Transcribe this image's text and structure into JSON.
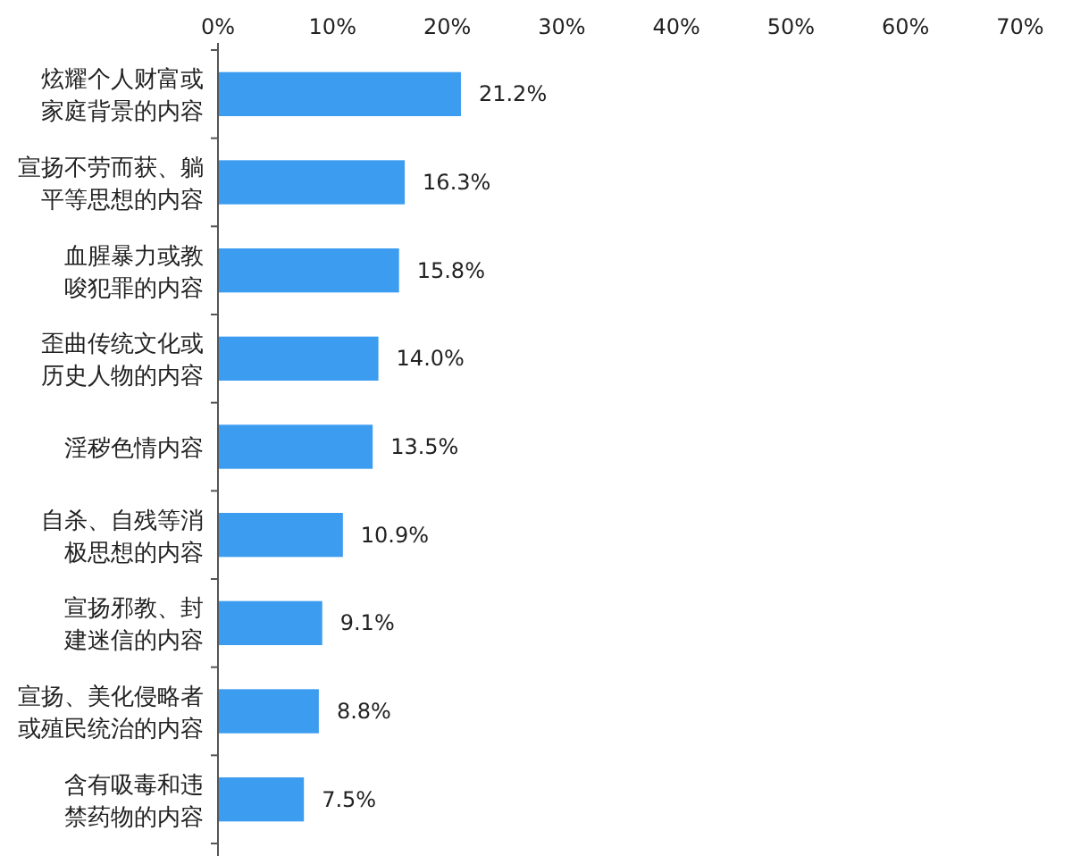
{
  "chart_data": {
    "type": "bar",
    "orientation": "horizontal",
    "categories": [
      "炫耀个人财富或家庭背景的内容",
      "宣扬不劳而获、躺平等思想的内容",
      "血腥暴力或教唆犯罪的内容",
      "歪曲传统文化或历史人物的内容",
      "淫秽色情内容",
      "自杀、自残等消极思想的内容",
      "宣扬邪教、封建迷信的内容",
      "宣扬、美化侵略者或殖民统治的内容",
      "含有吸毒和违禁药物的内容"
    ],
    "values": [
      21.2,
      16.3,
      15.8,
      14.0,
      13.5,
      10.9,
      9.1,
      8.8,
      7.5
    ],
    "value_labels": [
      "21.2%",
      "16.3%",
      "15.8%",
      "14.0%",
      "13.5%",
      "10.9%",
      "9.1%",
      "8.8%",
      "7.5%"
    ],
    "color": "#3c9cf0",
    "xlim": [
      0,
      70
    ],
    "xticks": [
      {
        "value": 0,
        "label": "0%"
      },
      {
        "value": 10,
        "label": "10%"
      },
      {
        "value": 20,
        "label": "20%"
      },
      {
        "value": 30,
        "label": "30%"
      },
      {
        "value": 40,
        "label": "40%"
      },
      {
        "value": 50,
        "label": "50%"
      },
      {
        "value": 60,
        "label": "60%"
      },
      {
        "value": 70,
        "label": "70%"
      }
    ],
    "grid": false
  }
}
